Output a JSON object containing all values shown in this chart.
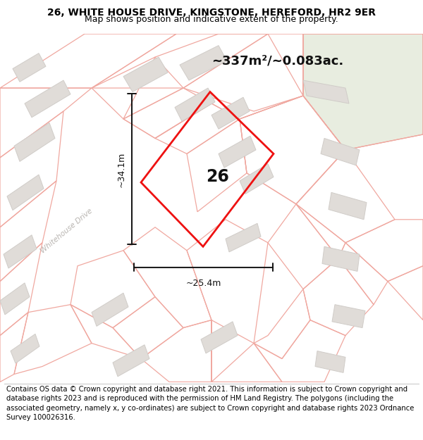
{
  "title_line1": "26, WHITE HOUSE DRIVE, KINGSTONE, HEREFORD, HR2 9ER",
  "title_line2": "Map shows position and indicative extent of the property.",
  "area_label": "~337m²/~0.083ac.",
  "number_label": "26",
  "dim_width": "~25.4m",
  "dim_height": "~34.1m",
  "road_label": "Whitehouse Drive",
  "footer_text": "Contains OS data © Crown copyright and database right 2021. This information is subject to Crown copyright and database rights 2023 and is reproduced with the permission of HM Land Registry. The polygons (including the associated geometry, namely x, y co-ordinates) are subject to Crown copyright and database rights 2023 Ordnance Survey 100026316.",
  "map_bg": "#f7f5f2",
  "parcel_edge": "#f0a8a0",
  "building_fill": "#e0dcd8",
  "building_edge": "#d0ccc8",
  "red_color": "#ee1111",
  "green_bg": "#e8ede0",
  "title_fontsize": 10,
  "subtitle_fontsize": 9,
  "footer_fontsize": 7.2,
  "road_label_color": "#b8b4b0",
  "dim_color": "#111111",
  "label_color": "#111111"
}
